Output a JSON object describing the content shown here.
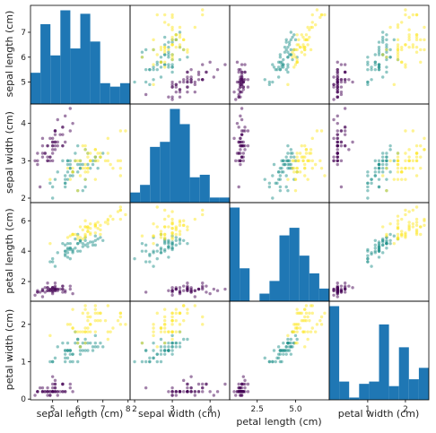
{
  "chart_data": {
    "type": "scatter-matrix",
    "variables": [
      "sepal length (cm)",
      "sepal width (cm)",
      "petal length (cm)",
      "petal width (cm)"
    ],
    "ranges": [
      [
        4.3,
        7.9
      ],
      [
        2.0,
        4.4
      ],
      [
        1.0,
        6.9
      ],
      [
        0.1,
        2.5
      ]
    ],
    "y_ticks": [
      {
        "values": [
          5,
          6,
          7
        ],
        "labels": [
          "5",
          "6",
          "7"
        ]
      },
      {
        "values": [
          2,
          3,
          4
        ],
        "labels": [
          "2",
          "3",
          "4"
        ]
      },
      {
        "values": [
          2,
          4,
          6
        ],
        "labels": [
          "2",
          "4",
          "6"
        ]
      },
      {
        "values": [
          0,
          1,
          2
        ],
        "labels": [
          "0",
          "1",
          "2"
        ]
      }
    ],
    "x_ticks": [
      {
        "values": [
          5,
          6,
          7,
          8
        ],
        "labels": [
          "5",
          "6",
          "7",
          "8"
        ]
      },
      {
        "values": [
          2,
          3,
          4
        ],
        "labels": [
          "2",
          "3",
          "4"
        ]
      },
      {
        "values": [
          2.5,
          5.0
        ],
        "labels": [
          "2.5",
          "5.0"
        ]
      },
      {
        "values": [
          1,
          2
        ],
        "labels": [
          "1",
          "2"
        ]
      }
    ],
    "class_colors": [
      "#440154",
      "#21918c",
      "#fde725"
    ],
    "hist_color": "#1f77b4",
    "point_alpha": 0.5,
    "histograms": [
      [
        9,
        23,
        14,
        27,
        16,
        26,
        18,
        6,
        5,
        6
      ],
      [
        4,
        7,
        22,
        24,
        37,
        31,
        10,
        11,
        2,
        2
      ],
      [
        37,
        13,
        0,
        3,
        8,
        26,
        29,
        18,
        11,
        5
      ],
      [
        41,
        8,
        1,
        7,
        8,
        33,
        6,
        23,
        9,
        14
      ]
    ],
    "samples": [
      [
        5.1,
        3.5,
        1.4,
        0.2,
        0
      ],
      [
        4.9,
        3.0,
        1.4,
        0.2,
        0
      ],
      [
        4.7,
        3.2,
        1.3,
        0.2,
        0
      ],
      [
        4.6,
        3.1,
        1.5,
        0.2,
        0
      ],
      [
        5.0,
        3.6,
        1.4,
        0.2,
        0
      ],
      [
        5.4,
        3.9,
        1.7,
        0.4,
        0
      ],
      [
        4.6,
        3.4,
        1.4,
        0.3,
        0
      ],
      [
        5.0,
        3.4,
        1.5,
        0.2,
        0
      ],
      [
        4.4,
        2.9,
        1.4,
        0.2,
        0
      ],
      [
        4.9,
        3.1,
        1.5,
        0.1,
        0
      ],
      [
        5.4,
        3.7,
        1.5,
        0.2,
        0
      ],
      [
        4.8,
        3.4,
        1.6,
        0.2,
        0
      ],
      [
        4.8,
        3.0,
        1.4,
        0.1,
        0
      ],
      [
        4.3,
        3.0,
        1.1,
        0.1,
        0
      ],
      [
        5.8,
        4.0,
        1.2,
        0.2,
        0
      ],
      [
        5.7,
        4.4,
        1.5,
        0.4,
        0
      ],
      [
        5.4,
        3.9,
        1.3,
        0.4,
        0
      ],
      [
        5.1,
        3.5,
        1.4,
        0.3,
        0
      ],
      [
        5.7,
        3.8,
        1.7,
        0.3,
        0
      ],
      [
        5.1,
        3.8,
        1.5,
        0.3,
        0
      ],
      [
        5.4,
        3.4,
        1.7,
        0.2,
        0
      ],
      [
        5.1,
        3.7,
        1.5,
        0.4,
        0
      ],
      [
        4.6,
        3.6,
        1.0,
        0.2,
        0
      ],
      [
        5.1,
        3.3,
        1.7,
        0.5,
        0
      ],
      [
        4.8,
        3.4,
        1.9,
        0.2,
        0
      ],
      [
        5.0,
        3.0,
        1.6,
        0.2,
        0
      ],
      [
        5.0,
        3.4,
        1.6,
        0.4,
        0
      ],
      [
        5.2,
        3.5,
        1.5,
        0.2,
        0
      ],
      [
        5.2,
        3.4,
        1.4,
        0.2,
        0
      ],
      [
        4.7,
        3.2,
        1.6,
        0.2,
        0
      ],
      [
        4.8,
        3.1,
        1.6,
        0.2,
        0
      ],
      [
        5.4,
        3.4,
        1.5,
        0.4,
        0
      ],
      [
        5.2,
        4.1,
        1.5,
        0.1,
        0
      ],
      [
        5.5,
        4.2,
        1.4,
        0.2,
        0
      ],
      [
        4.9,
        3.1,
        1.5,
        0.2,
        0
      ],
      [
        5.0,
        3.2,
        1.2,
        0.2,
        0
      ],
      [
        5.5,
        3.5,
        1.3,
        0.2,
        0
      ],
      [
        4.9,
        3.6,
        1.4,
        0.1,
        0
      ],
      [
        4.4,
        3.0,
        1.3,
        0.2,
        0
      ],
      [
        5.1,
        3.4,
        1.5,
        0.2,
        0
      ],
      [
        5.0,
        3.5,
        1.3,
        0.3,
        0
      ],
      [
        4.5,
        2.3,
        1.3,
        0.3,
        0
      ],
      [
        4.4,
        3.2,
        1.3,
        0.2,
        0
      ],
      [
        5.0,
        3.5,
        1.6,
        0.6,
        0
      ],
      [
        5.1,
        3.8,
        1.9,
        0.4,
        0
      ],
      [
        4.8,
        3.0,
        1.4,
        0.3,
        0
      ],
      [
        5.1,
        3.8,
        1.6,
        0.2,
        0
      ],
      [
        4.6,
        3.2,
        1.4,
        0.2,
        0
      ],
      [
        5.3,
        3.7,
        1.5,
        0.2,
        0
      ],
      [
        5.0,
        3.3,
        1.4,
        0.2,
        0
      ],
      [
        7.0,
        3.2,
        4.7,
        1.4,
        1
      ],
      [
        6.4,
        3.2,
        4.5,
        1.5,
        1
      ],
      [
        6.9,
        3.1,
        4.9,
        1.5,
        1
      ],
      [
        5.5,
        2.3,
        4.0,
        1.3,
        1
      ],
      [
        6.5,
        2.8,
        4.6,
        1.5,
        1
      ],
      [
        5.7,
        2.8,
        4.5,
        1.3,
        1
      ],
      [
        6.3,
        3.3,
        4.7,
        1.6,
        1
      ],
      [
        4.9,
        2.4,
        3.3,
        1.0,
        1
      ],
      [
        6.6,
        2.9,
        4.6,
        1.3,
        1
      ],
      [
        5.2,
        2.7,
        3.9,
        1.4,
        1
      ],
      [
        5.0,
        2.0,
        3.5,
        1.0,
        1
      ],
      [
        5.9,
        3.0,
        4.2,
        1.5,
        1
      ],
      [
        6.0,
        2.2,
        4.0,
        1.0,
        1
      ],
      [
        6.1,
        2.9,
        4.7,
        1.4,
        1
      ],
      [
        5.6,
        2.9,
        3.6,
        1.3,
        1
      ],
      [
        6.7,
        3.1,
        4.4,
        1.4,
        1
      ],
      [
        5.6,
        3.0,
        4.5,
        1.5,
        1
      ],
      [
        5.8,
        2.7,
        4.1,
        1.0,
        1
      ],
      [
        6.2,
        2.2,
        4.5,
        1.5,
        1
      ],
      [
        5.6,
        2.5,
        3.9,
        1.1,
        1
      ],
      [
        5.9,
        3.2,
        4.8,
        1.8,
        1
      ],
      [
        6.1,
        2.8,
        4.0,
        1.3,
        1
      ],
      [
        6.3,
        2.5,
        4.9,
        1.5,
        1
      ],
      [
        6.1,
        2.8,
        4.7,
        1.2,
        1
      ],
      [
        6.4,
        2.9,
        4.3,
        1.3,
        1
      ],
      [
        6.6,
        3.0,
        4.4,
        1.4,
        1
      ],
      [
        6.8,
        2.8,
        4.8,
        1.4,
        1
      ],
      [
        6.7,
        3.0,
        5.0,
        1.7,
        1
      ],
      [
        6.0,
        2.9,
        4.5,
        1.5,
        1
      ],
      [
        5.7,
        2.6,
        3.5,
        1.0,
        1
      ],
      [
        5.5,
        2.4,
        3.8,
        1.1,
        1
      ],
      [
        5.5,
        2.4,
        3.7,
        1.0,
        1
      ],
      [
        5.8,
        2.7,
        3.9,
        1.2,
        1
      ],
      [
        6.0,
        2.7,
        5.1,
        1.6,
        1
      ],
      [
        5.4,
        3.0,
        4.5,
        1.5,
        1
      ],
      [
        6.0,
        3.4,
        4.5,
        1.6,
        1
      ],
      [
        6.7,
        3.1,
        4.7,
        1.5,
        1
      ],
      [
        6.3,
        2.3,
        4.4,
        1.3,
        1
      ],
      [
        5.6,
        3.0,
        4.1,
        1.3,
        1
      ],
      [
        5.5,
        2.5,
        4.0,
        1.3,
        1
      ],
      [
        5.5,
        2.6,
        4.4,
        1.2,
        1
      ],
      [
        6.1,
        3.0,
        4.6,
        1.4,
        1
      ],
      [
        5.8,
        2.6,
        4.0,
        1.2,
        1
      ],
      [
        5.0,
        2.3,
        3.3,
        1.0,
        1
      ],
      [
        5.6,
        2.7,
        4.2,
        1.3,
        1
      ],
      [
        5.7,
        3.0,
        4.2,
        1.2,
        1
      ],
      [
        5.7,
        2.9,
        4.2,
        1.3,
        1
      ],
      [
        6.2,
        2.9,
        4.3,
        1.3,
        1
      ],
      [
        5.1,
        2.5,
        3.0,
        1.1,
        1
      ],
      [
        5.7,
        2.8,
        4.1,
        1.3,
        1
      ],
      [
        6.3,
        3.3,
        6.0,
        2.5,
        2
      ],
      [
        5.8,
        2.7,
        5.1,
        1.9,
        2
      ],
      [
        7.1,
        3.0,
        5.9,
        2.1,
        2
      ],
      [
        6.3,
        2.9,
        5.6,
        1.8,
        2
      ],
      [
        6.5,
        3.0,
        5.8,
        2.2,
        2
      ],
      [
        7.6,
        3.0,
        6.6,
        2.1,
        2
      ],
      [
        4.9,
        2.5,
        4.5,
        1.7,
        2
      ],
      [
        7.3,
        2.9,
        6.3,
        1.8,
        2
      ],
      [
        6.7,
        2.5,
        5.8,
        1.8,
        2
      ],
      [
        7.2,
        3.6,
        6.1,
        2.5,
        2
      ],
      [
        6.5,
        3.2,
        5.1,
        2.0,
        2
      ],
      [
        6.4,
        2.7,
        5.3,
        1.9,
        2
      ],
      [
        6.8,
        3.0,
        5.5,
        2.1,
        2
      ],
      [
        5.7,
        2.5,
        5.0,
        2.0,
        2
      ],
      [
        5.8,
        2.8,
        5.1,
        2.4,
        2
      ],
      [
        6.4,
        3.2,
        5.3,
        2.3,
        2
      ],
      [
        6.5,
        3.0,
        5.5,
        1.8,
        2
      ],
      [
        7.7,
        3.8,
        6.7,
        2.2,
        2
      ],
      [
        7.7,
        2.6,
        6.9,
        2.3,
        2
      ],
      [
        6.0,
        2.2,
        5.0,
        1.5,
        2
      ],
      [
        6.9,
        3.2,
        5.7,
        2.3,
        2
      ],
      [
        5.6,
        2.8,
        4.9,
        2.0,
        2
      ],
      [
        7.7,
        2.8,
        6.7,
        2.0,
        2
      ],
      [
        6.3,
        2.7,
        4.9,
        1.8,
        2
      ],
      [
        6.7,
        3.3,
        5.7,
        2.1,
        2
      ],
      [
        7.2,
        3.2,
        6.0,
        1.8,
        2
      ],
      [
        6.2,
        2.8,
        4.8,
        1.8,
        2
      ],
      [
        6.1,
        3.0,
        4.9,
        1.8,
        2
      ],
      [
        6.4,
        2.8,
        5.6,
        2.1,
        2
      ],
      [
        7.2,
        3.0,
        5.8,
        1.6,
        2
      ],
      [
        7.4,
        2.8,
        6.1,
        1.9,
        2
      ],
      [
        7.9,
        3.8,
        6.4,
        2.0,
        2
      ],
      [
        6.4,
        2.8,
        5.6,
        2.2,
        2
      ],
      [
        6.3,
        2.8,
        5.1,
        1.5,
        2
      ],
      [
        6.1,
        2.6,
        5.6,
        1.4,
        2
      ],
      [
        7.7,
        3.0,
        6.1,
        2.3,
        2
      ],
      [
        6.3,
        3.4,
        5.6,
        2.4,
        2
      ],
      [
        6.4,
        3.1,
        5.5,
        1.8,
        2
      ],
      [
        6.0,
        3.0,
        4.8,
        1.8,
        2
      ],
      [
        6.9,
        3.1,
        5.4,
        2.1,
        2
      ],
      [
        6.7,
        3.1,
        5.6,
        2.4,
        2
      ],
      [
        6.9,
        3.1,
        5.1,
        2.3,
        2
      ],
      [
        5.8,
        2.7,
        5.1,
        1.9,
        2
      ],
      [
        6.8,
        3.2,
        5.9,
        2.3,
        2
      ],
      [
        6.7,
        3.3,
        5.7,
        2.5,
        2
      ],
      [
        6.7,
        3.0,
        5.2,
        2.3,
        2
      ],
      [
        6.3,
        2.5,
        5.0,
        1.9,
        2
      ],
      [
        6.5,
        3.0,
        5.2,
        2.0,
        2
      ],
      [
        6.2,
        3.4,
        5.4,
        2.3,
        2
      ],
      [
        5.9,
        3.0,
        5.1,
        1.8,
        2
      ]
    ]
  }
}
